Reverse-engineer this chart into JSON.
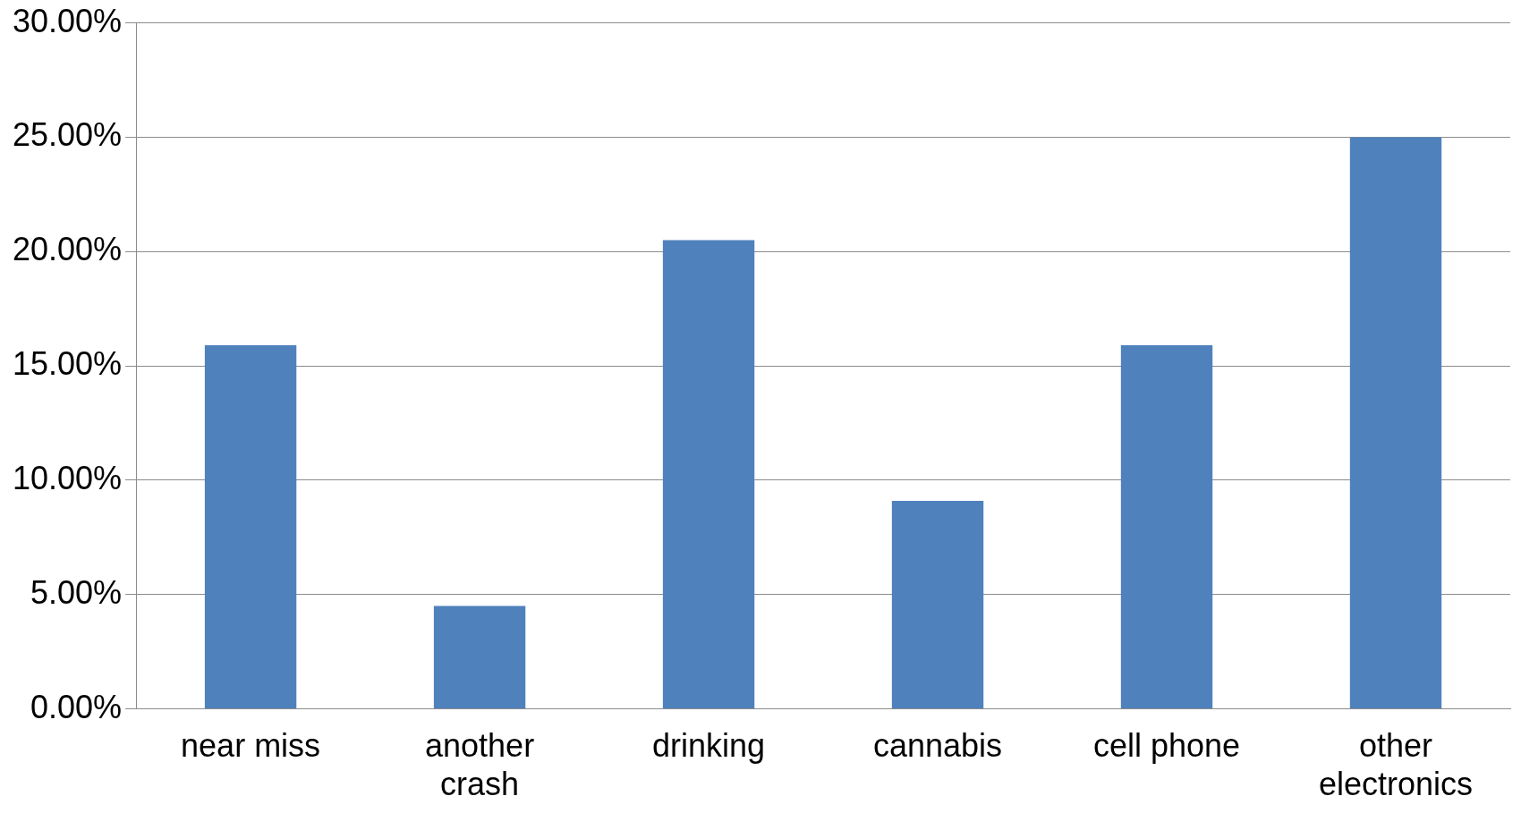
{
  "chart_data": {
    "type": "bar",
    "categories": [
      "near miss",
      "another crash",
      "drinking",
      "cannabis",
      "cell phone",
      "other electronics"
    ],
    "values": [
      15.9,
      4.5,
      20.5,
      9.1,
      15.9,
      25.0
    ],
    "color": "#4f81bd",
    "ylim": [
      0,
      30
    ],
    "yticks": [
      {
        "value": 0,
        "label": "0.00%"
      },
      {
        "value": 5,
        "label": "5.00%"
      },
      {
        "value": 10,
        "label": "10.00%"
      },
      {
        "value": 15,
        "label": "15.00%"
      },
      {
        "value": 20,
        "label": "20.00%"
      },
      {
        "value": 25,
        "label": "25.00%"
      },
      {
        "value": 30,
        "label": "30.00%"
      }
    ],
    "grid": "y",
    "legend": false
  }
}
